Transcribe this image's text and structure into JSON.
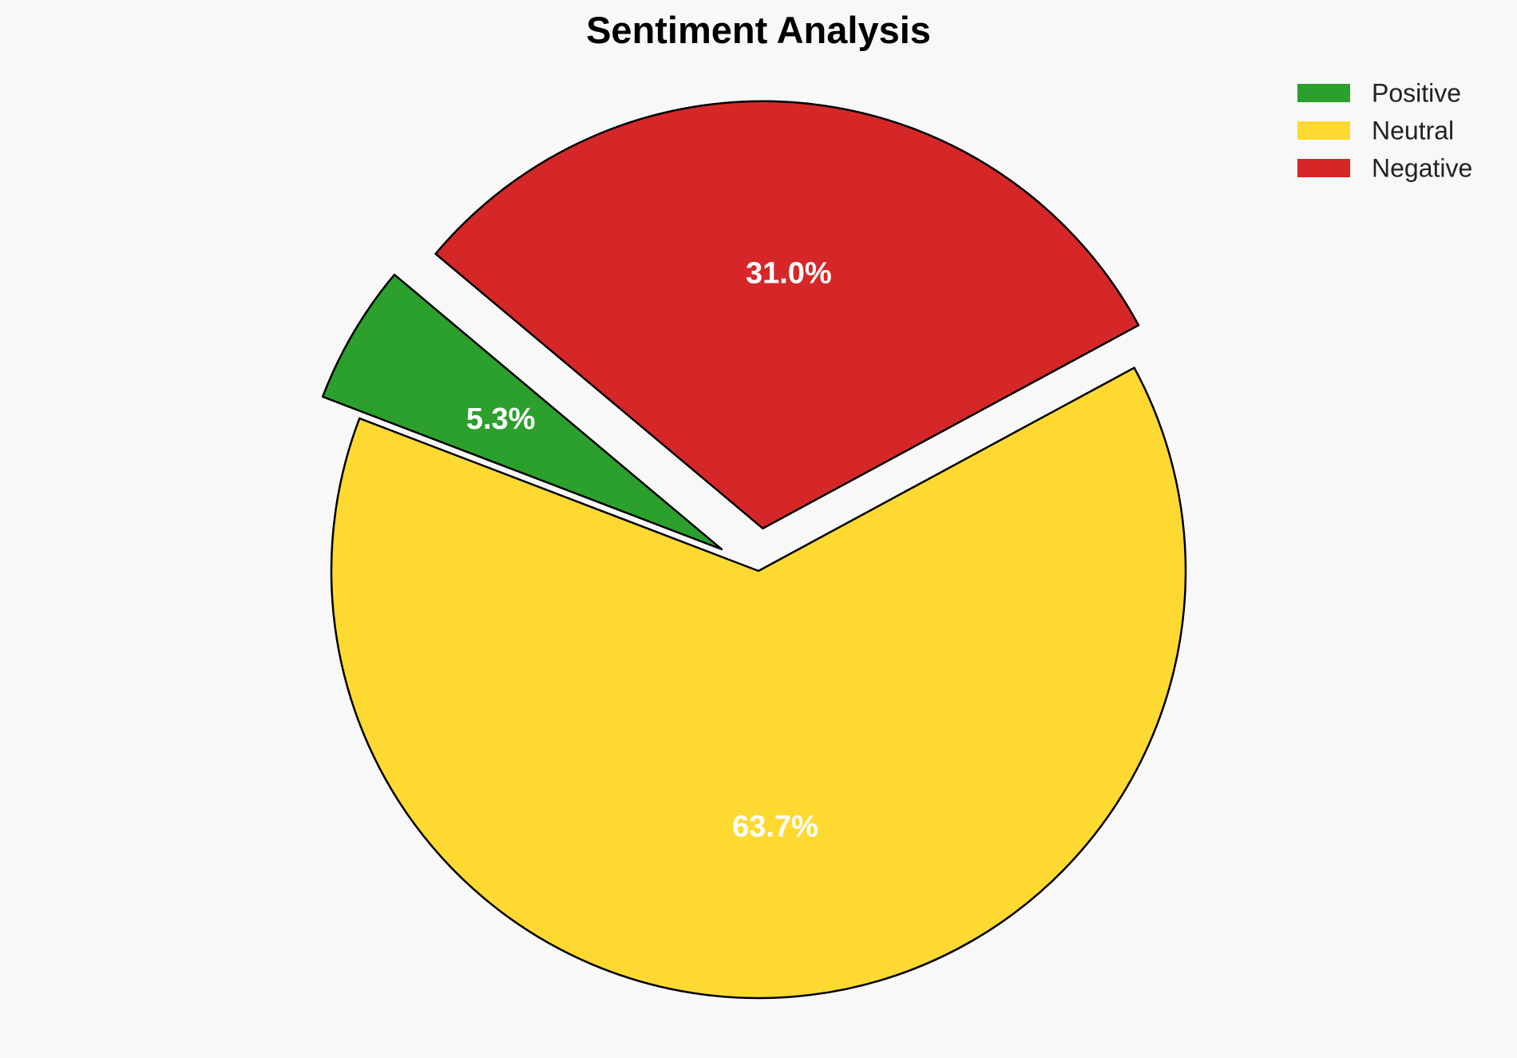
{
  "chart_data": {
    "type": "pie",
    "title": "Sentiment Analysis",
    "slices": [
      {
        "name": "Positive",
        "value": 5.3,
        "label": "5.3%",
        "color": "#2ca02c",
        "exploded": true
      },
      {
        "name": "Neutral",
        "value": 63.7,
        "label": "63.7%",
        "color": "#fed931",
        "exploded": false
      },
      {
        "name": "Negative",
        "value": 31.0,
        "label": "31.0%",
        "color": "#d62728",
        "exploded": true
      }
    ],
    "legend": {
      "placement": "top-right",
      "entries": [
        "Positive",
        "Neutral",
        "Negative"
      ]
    }
  }
}
